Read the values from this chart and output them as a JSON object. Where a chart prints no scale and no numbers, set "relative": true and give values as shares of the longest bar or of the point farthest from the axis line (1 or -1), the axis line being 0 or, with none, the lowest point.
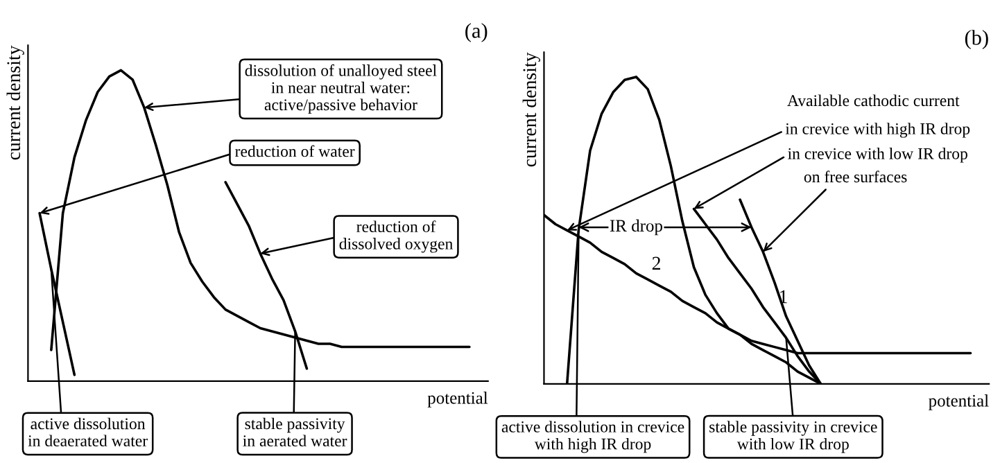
{
  "chart_data": [
    {
      "type": "line",
      "title": "(a)",
      "xlabel": "potential",
      "ylabel": "current density",
      "relative": true,
      "categories": [
        null,
        null,
        null,
        null,
        null,
        null,
        null,
        null,
        null,
        null,
        null,
        null,
        null,
        null,
        null,
        null,
        null,
        null,
        null,
        null,
        null,
        null,
        null,
        null,
        null,
        null,
        null,
        null,
        null,
        null,
        null,
        null,
        null,
        null,
        null,
        null,
        null,
        null,
        null,
        null
      ],
      "series": [
        {
          "color": "#000000",
          "values": [
            null,
            null,
            0.1,
            0.54,
            0.72,
            0.84,
            0.93,
            0.98,
            1.0,
            0.97,
            0.88,
            0.76,
            0.63,
            0.48,
            0.38,
            0.32,
            0.27,
            0.23,
            0.21,
            0.19,
            0.17,
            0.16,
            0.15,
            0.14,
            0.13,
            0.12,
            0.12,
            0.11,
            0.11,
            0.11,
            0.11,
            0.11,
            0.11,
            0.11,
            0.11,
            0.11,
            0.11,
            0.11,
            0.11,
            null
          ]
        },
        {
          "color": "#000000",
          "values": [
            null,
            0.54,
            0.36,
            0.19,
            0.02,
            null,
            null,
            null,
            null,
            null,
            null,
            null,
            null,
            null,
            null,
            null,
            null,
            null,
            null,
            null,
            null,
            null,
            null,
            null,
            null,
            null,
            null,
            null,
            null,
            null,
            null,
            null,
            null,
            null,
            null,
            null,
            null,
            null,
            null,
            null
          ]
        },
        {
          "color": "#000000",
          "values": [
            null,
            null,
            null,
            null,
            null,
            null,
            null,
            null,
            null,
            null,
            null,
            null,
            null,
            null,
            null,
            null,
            null,
            0.64,
            0.57,
            0.5,
            0.41,
            0.33,
            0.26,
            0.16,
            0.04,
            null,
            null,
            null,
            null,
            null,
            null,
            null,
            null,
            null,
            null,
            null,
            null,
            null,
            null,
            null
          ]
        }
      ],
      "annotations": [
        "dissolution of unalloyed steel\nin near neutral water:\nactive/passive behavior",
        "reduction of water",
        "reduction of\ndissolved oxygen",
        "active dissolution\nin deaerated water",
        "stable passivity\nin aerated water"
      ]
    },
    {
      "type": "line",
      "title": "(b)",
      "xlabel": "potential",
      "ylabel": "current density",
      "relative": true,
      "categories": [
        null,
        null,
        null,
        null,
        null,
        null,
        null,
        null,
        null,
        null,
        null,
        null,
        null,
        null,
        null,
        null,
        null,
        null,
        null,
        null,
        null,
        null,
        null,
        null,
        null,
        null,
        null,
        null,
        null,
        null,
        null,
        null,
        null,
        null,
        null,
        null,
        null,
        null,
        null
      ],
      "series": [
        {
          "color": "#000000",
          "values": [
            null,
            null,
            0.0,
            0.5,
            0.76,
            0.88,
            0.95,
            0.99,
            1.0,
            0.96,
            0.86,
            0.71,
            0.53,
            0.38,
            0.29,
            0.23,
            0.18,
            0.16,
            0.14,
            0.13,
            0.12,
            0.11,
            0.1,
            0.1,
            0.1,
            0.1,
            0.1,
            0.1,
            0.1,
            0.1,
            0.1,
            0.1,
            0.1,
            0.1,
            0.1,
            0.1,
            0.1,
            0.1,
            null
          ]
        },
        {
          "name": "1",
          "color": "#000000",
          "values": [
            null,
            null,
            null,
            null,
            null,
            null,
            null,
            null,
            null,
            null,
            null,
            null,
            null,
            0.57,
            0.52,
            0.47,
            0.41,
            0.36,
            0.31,
            0.25,
            0.2,
            0.15,
            0.09,
            0.04,
            0.0,
            null,
            null,
            null,
            null,
            null,
            null,
            null,
            null,
            null,
            null,
            null,
            null,
            null,
            null
          ]
        },
        {
          "name": "2",
          "color": "#000000",
          "values": [
            0.55,
            0.52,
            0.5,
            0.48,
            0.46,
            0.43,
            0.41,
            0.39,
            0.36,
            0.34,
            0.32,
            0.3,
            0.27,
            0.25,
            0.23,
            0.2,
            0.18,
            0.16,
            0.13,
            0.11,
            0.09,
            0.07,
            0.04,
            0.02,
            0.0,
            null,
            null,
            null,
            null,
            null,
            null,
            null,
            null,
            null,
            null,
            null,
            null,
            null,
            null
          ]
        },
        {
          "color": "#000000",
          "values": [
            null,
            null,
            null,
            null,
            null,
            null,
            null,
            null,
            null,
            null,
            null,
            null,
            null,
            null,
            null,
            null,
            null,
            0.6,
            0.51,
            0.43,
            0.33,
            0.22,
            0.14,
            0.06,
            0.0,
            null,
            null,
            null,
            null,
            null,
            null,
            null,
            null,
            null,
            null,
            null,
            null,
            null,
            null
          ]
        }
      ],
      "annotations": [
        "Available cathodic current",
        "in crevice with high IR drop",
        "in crevice with low IR drop",
        "on free surfaces",
        {
          "text": "IR drop",
          "y": 0.51
        },
        "active dissolution in crevice\nwith high IR drop",
        "stable passivity in crevice\nwith low IR drop"
      ]
    }
  ]
}
